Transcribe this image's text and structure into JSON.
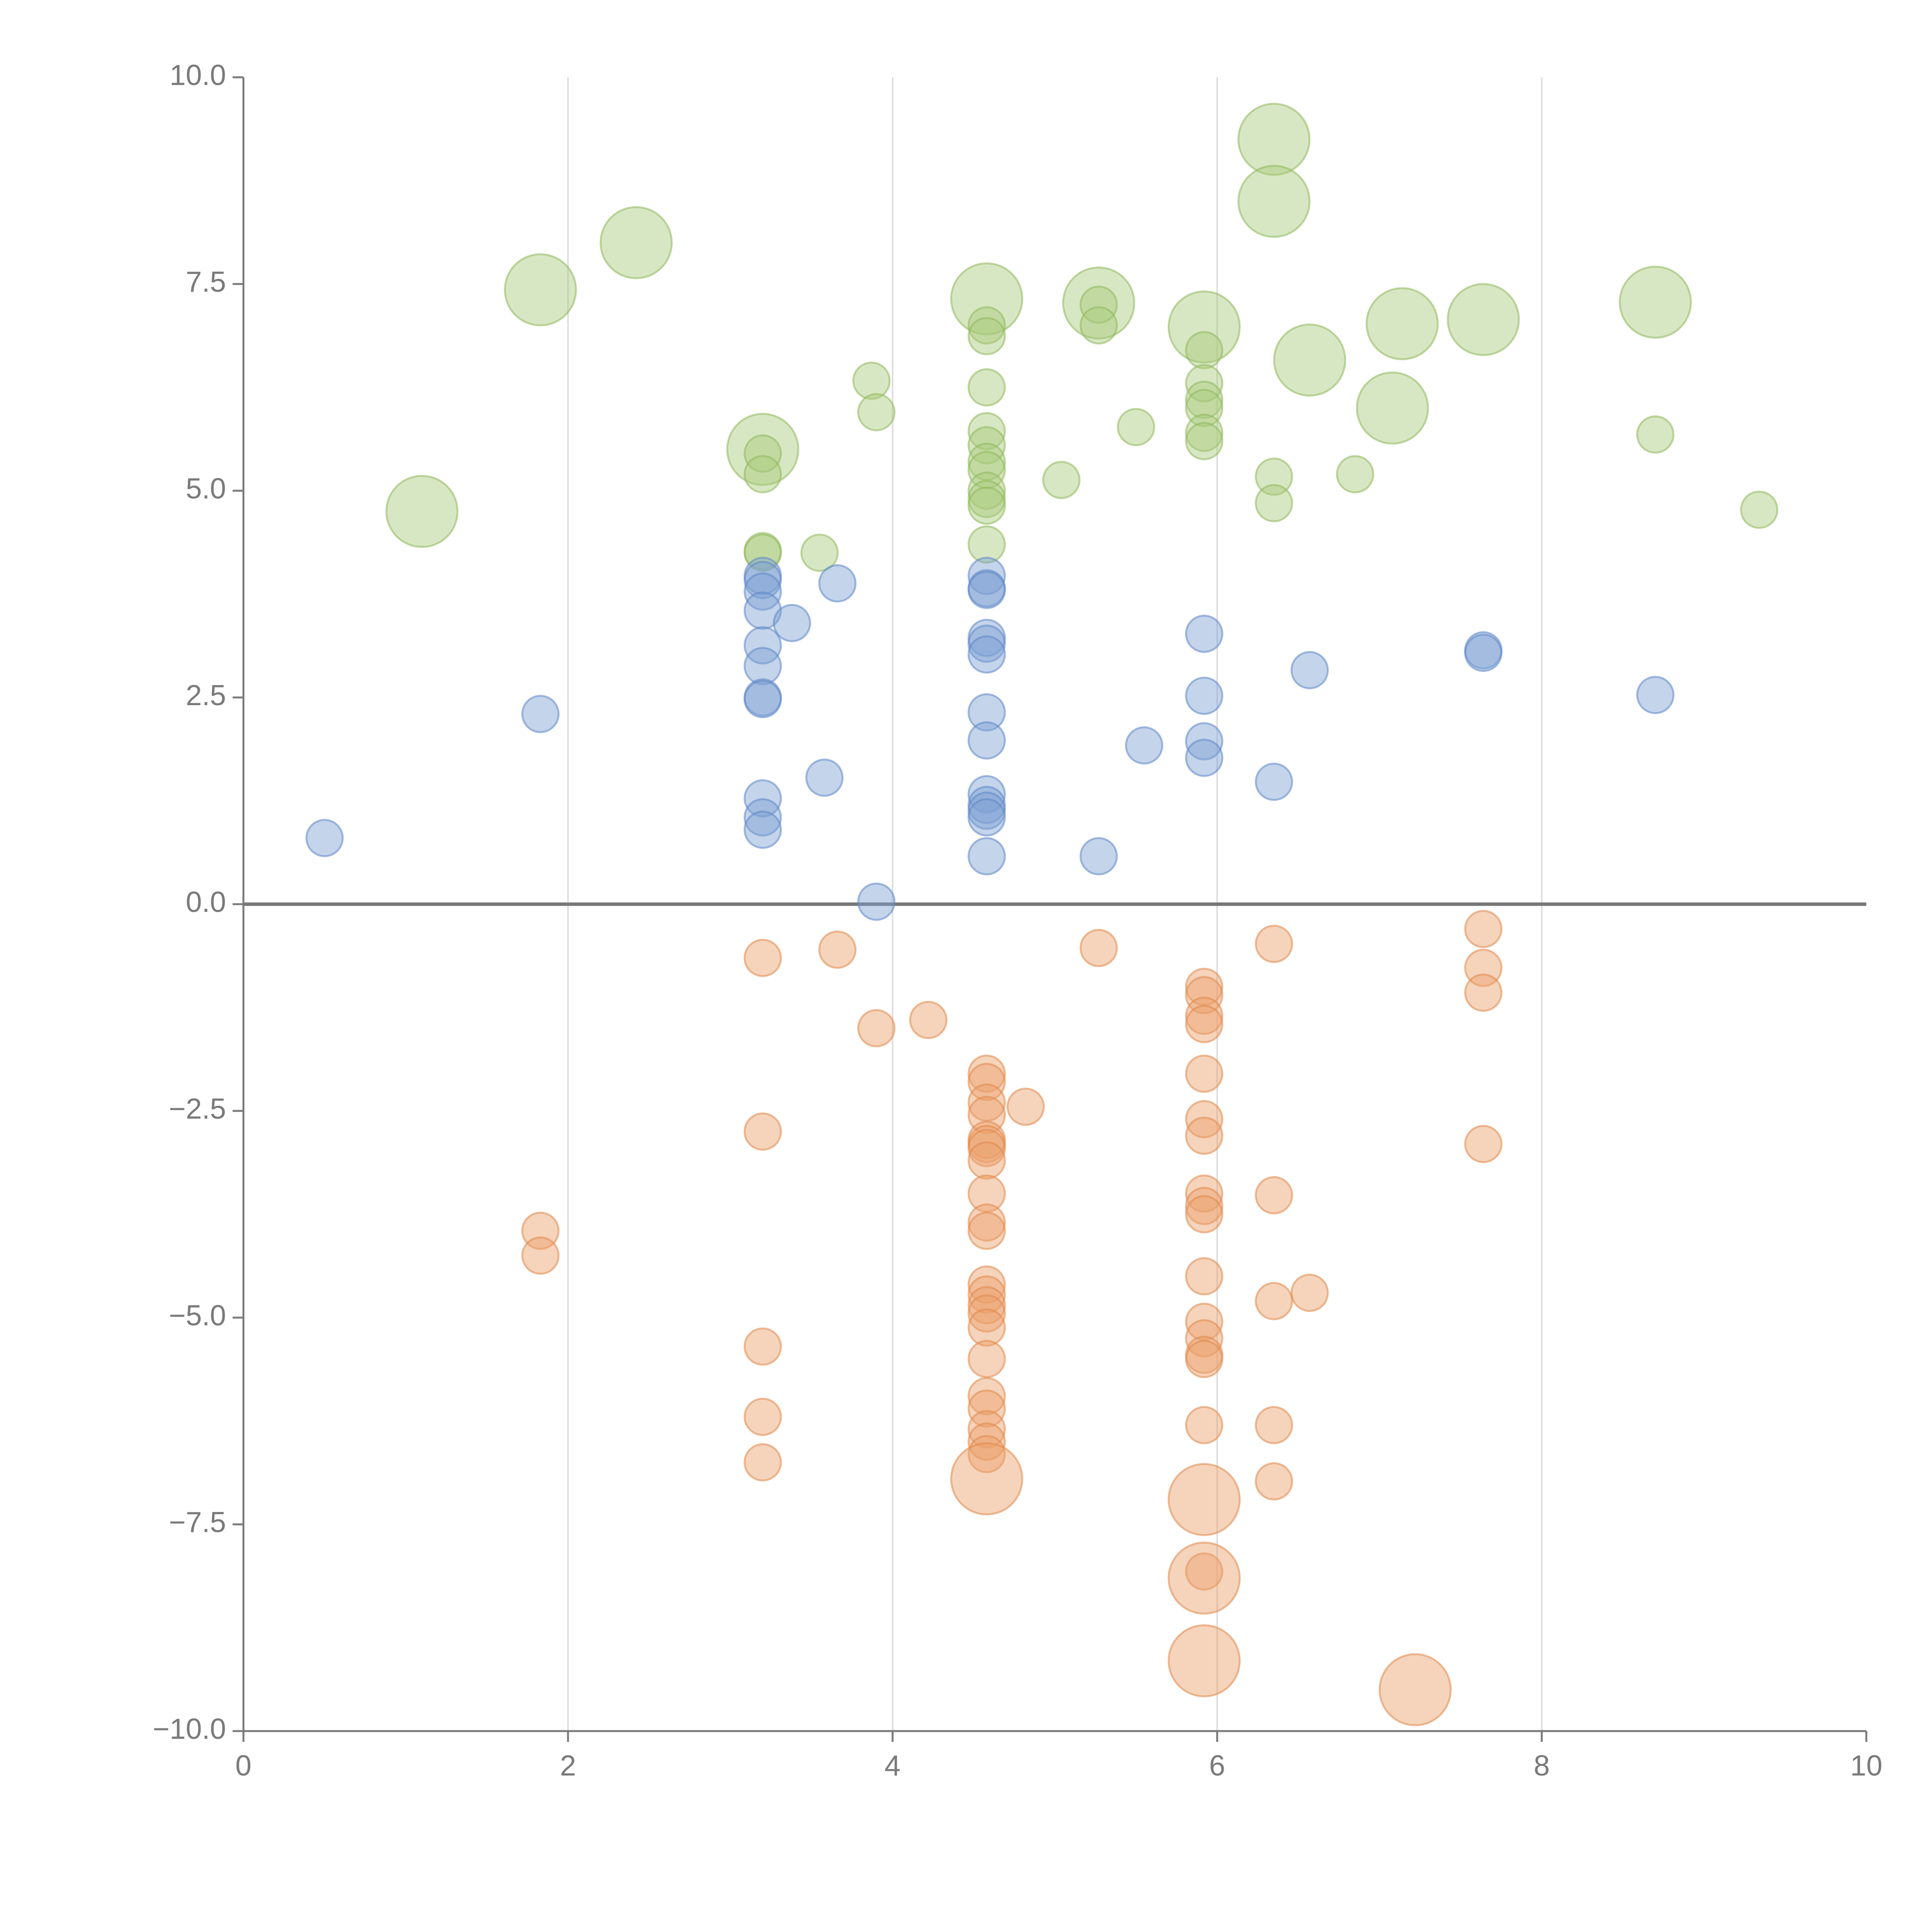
{
  "chart_data": {
    "type": "scatter",
    "title": "",
    "xlabel": "",
    "ylabel": "",
    "xlim": [
      0,
      10
    ],
    "ylim": [
      -10,
      10
    ],
    "x_ticks": [
      "0",
      "2",
      "4",
      "6",
      "8",
      "10"
    ],
    "y_ticks": [
      "10.0",
      "7.5",
      "5.0",
      "2.5",
      "0.0",
      "−2.5",
      "−5.0",
      "−7.5",
      "−10.0"
    ],
    "x_tick_values": [
      0,
      2,
      4,
      6,
      8,
      10
    ],
    "y_tick_values": [
      10,
      7.5,
      5,
      2.5,
      0,
      -2.5,
      -5,
      -7.5,
      -10
    ],
    "vertical_grid_at": [
      2,
      4,
      6,
      8
    ],
    "zero_line": 0,
    "colors": {
      "green_fill": "#a9c97a",
      "green_stroke": "#8fb85c",
      "blue_fill": "#7d9fd3",
      "blue_stroke": "#5f86c6",
      "orange_fill": "#eba06a",
      "orange_stroke": "#e0894a",
      "axis": "#7a7a7a",
      "grid": "#dddddd",
      "zero_line": "#777777"
    },
    "series": [
      {
        "name": "green",
        "fill": "#a9c97a",
        "stroke": "#8fb85c",
        "points": [
          {
            "x": 1.1,
            "y": 4.75,
            "s": 3
          },
          {
            "x": 1.83,
            "y": 7.43,
            "s": 3
          },
          {
            "x": 2.42,
            "y": 8.0,
            "s": 3
          },
          {
            "x": 3.2,
            "y": 5.5,
            "s": 3
          },
          {
            "x": 3.2,
            "y": 5.45,
            "s": 1
          },
          {
            "x": 3.2,
            "y": 5.2,
            "s": 1
          },
          {
            "x": 3.2,
            "y": 4.27,
            "s": 1
          },
          {
            "x": 3.2,
            "y": 4.25,
            "s": 1
          },
          {
            "x": 3.55,
            "y": 4.25,
            "s": 1
          },
          {
            "x": 3.87,
            "y": 6.33,
            "s": 1
          },
          {
            "x": 3.9,
            "y": 5.95,
            "s": 1
          },
          {
            "x": 4.58,
            "y": 7.32,
            "s": 3
          },
          {
            "x": 4.58,
            "y": 7.0,
            "s": 1
          },
          {
            "x": 4.58,
            "y": 6.87,
            "s": 1
          },
          {
            "x": 4.58,
            "y": 6.25,
            "s": 1
          },
          {
            "x": 4.58,
            "y": 5.72,
            "s": 1
          },
          {
            "x": 4.58,
            "y": 5.55,
            "s": 1
          },
          {
            "x": 4.58,
            "y": 5.35,
            "s": 1
          },
          {
            "x": 4.58,
            "y": 5.25,
            "s": 1
          },
          {
            "x": 4.58,
            "y": 5.0,
            "s": 1
          },
          {
            "x": 4.58,
            "y": 4.9,
            "s": 1
          },
          {
            "x": 4.58,
            "y": 4.82,
            "s": 1
          },
          {
            "x": 4.58,
            "y": 4.35,
            "s": 1
          },
          {
            "x": 5.04,
            "y": 5.13,
            "s": 1
          },
          {
            "x": 5.27,
            "y": 7.27,
            "s": 3
          },
          {
            "x": 5.27,
            "y": 7.25,
            "s": 1
          },
          {
            "x": 5.27,
            "y": 7.0,
            "s": 1
          },
          {
            "x": 5.5,
            "y": 5.77,
            "s": 1
          },
          {
            "x": 5.92,
            "y": 6.98,
            "s": 3
          },
          {
            "x": 5.92,
            "y": 6.7,
            "s": 1
          },
          {
            "x": 5.92,
            "y": 6.3,
            "s": 1
          },
          {
            "x": 5.92,
            "y": 6.1,
            "s": 1
          },
          {
            "x": 5.92,
            "y": 6.0,
            "s": 1
          },
          {
            "x": 5.92,
            "y": 5.7,
            "s": 1
          },
          {
            "x": 5.92,
            "y": 5.6,
            "s": 1
          },
          {
            "x": 6.35,
            "y": 9.25,
            "s": 3
          },
          {
            "x": 6.35,
            "y": 8.5,
            "s": 3
          },
          {
            "x": 6.35,
            "y": 5.17,
            "s": 1
          },
          {
            "x": 6.35,
            "y": 4.85,
            "s": 1
          },
          {
            "x": 6.57,
            "y": 6.58,
            "s": 3
          },
          {
            "x": 6.85,
            "y": 5.2,
            "s": 1
          },
          {
            "x": 7.08,
            "y": 6.0,
            "s": 3
          },
          {
            "x": 7.14,
            "y": 7.02,
            "s": 3
          },
          {
            "x": 7.64,
            "y": 7.07,
            "s": 3
          },
          {
            "x": 8.7,
            "y": 7.28,
            "s": 3
          },
          {
            "x": 8.7,
            "y": 5.68,
            "s": 1
          },
          {
            "x": 9.34,
            "y": 4.77,
            "s": 1
          }
        ]
      },
      {
        "name": "blue",
        "fill": "#7d9fd3",
        "stroke": "#5f86c6",
        "points": [
          {
            "x": 0.5,
            "y": 0.8,
            "s": 1
          },
          {
            "x": 1.83,
            "y": 2.3,
            "s": 1
          },
          {
            "x": 3.2,
            "y": 3.97,
            "s": 1
          },
          {
            "x": 3.2,
            "y": 3.92,
            "s": 1
          },
          {
            "x": 3.2,
            "y": 3.78,
            "s": 1
          },
          {
            "x": 3.2,
            "y": 3.55,
            "s": 1
          },
          {
            "x": 3.2,
            "y": 3.13,
            "s": 1
          },
          {
            "x": 3.2,
            "y": 2.88,
            "s": 1
          },
          {
            "x": 3.2,
            "y": 2.5,
            "s": 1
          },
          {
            "x": 3.2,
            "y": 2.48,
            "s": 1
          },
          {
            "x": 3.2,
            "y": 1.28,
            "s": 1
          },
          {
            "x": 3.2,
            "y": 1.05,
            "s": 1
          },
          {
            "x": 3.2,
            "y": 0.9,
            "s": 1
          },
          {
            "x": 3.38,
            "y": 3.4,
            "s": 1
          },
          {
            "x": 3.58,
            "y": 1.53,
            "s": 1
          },
          {
            "x": 3.66,
            "y": 3.88,
            "s": 1
          },
          {
            "x": 3.9,
            "y": 0.03,
            "s": 1
          },
          {
            "x": 4.58,
            "y": 3.97,
            "s": 1
          },
          {
            "x": 4.58,
            "y": 3.82,
            "s": 1
          },
          {
            "x": 4.58,
            "y": 3.8,
            "s": 1
          },
          {
            "x": 4.58,
            "y": 3.22,
            "s": 1
          },
          {
            "x": 4.58,
            "y": 3.15,
            "s": 1
          },
          {
            "x": 4.58,
            "y": 3.02,
            "s": 1
          },
          {
            "x": 4.58,
            "y": 2.32,
            "s": 1
          },
          {
            "x": 4.58,
            "y": 1.98,
            "s": 1
          },
          {
            "x": 4.58,
            "y": 1.33,
            "s": 1
          },
          {
            "x": 4.58,
            "y": 1.2,
            "s": 1
          },
          {
            "x": 4.58,
            "y": 1.13,
            "s": 1
          },
          {
            "x": 4.58,
            "y": 1.05,
            "s": 1
          },
          {
            "x": 4.58,
            "y": 0.58,
            "s": 1
          },
          {
            "x": 5.27,
            "y": 0.58,
            "s": 1
          },
          {
            "x": 5.55,
            "y": 1.92,
            "s": 1
          },
          {
            "x": 5.92,
            "y": 3.27,
            "s": 1
          },
          {
            "x": 5.92,
            "y": 2.52,
            "s": 1
          },
          {
            "x": 5.92,
            "y": 1.97,
            "s": 1
          },
          {
            "x": 5.92,
            "y": 1.77,
            "s": 1
          },
          {
            "x": 6.35,
            "y": 1.48,
            "s": 1
          },
          {
            "x": 6.57,
            "y": 2.83,
            "s": 1
          },
          {
            "x": 7.64,
            "y": 3.07,
            "s": 1
          },
          {
            "x": 7.64,
            "y": 3.04,
            "s": 1
          },
          {
            "x": 8.7,
            "y": 2.53,
            "s": 1
          }
        ]
      },
      {
        "name": "orange",
        "fill": "#eba06a",
        "stroke": "#e0894a",
        "points": [
          {
            "x": 1.83,
            "y": -3.95,
            "s": 1
          },
          {
            "x": 1.83,
            "y": -4.25,
            "s": 1
          },
          {
            "x": 3.2,
            "y": -0.65,
            "s": 1
          },
          {
            "x": 3.2,
            "y": -2.75,
            "s": 1
          },
          {
            "x": 3.2,
            "y": -5.35,
            "s": 1
          },
          {
            "x": 3.2,
            "y": -6.2,
            "s": 1
          },
          {
            "x": 3.2,
            "y": -6.75,
            "s": 1
          },
          {
            "x": 3.66,
            "y": -0.55,
            "s": 1
          },
          {
            "x": 3.9,
            "y": -1.5,
            "s": 1
          },
          {
            "x": 4.22,
            "y": -1.4,
            "s": 1
          },
          {
            "x": 4.58,
            "y": -2.05,
            "s": 1
          },
          {
            "x": 4.58,
            "y": -2.15,
            "s": 1
          },
          {
            "x": 4.58,
            "y": -2.4,
            "s": 1
          },
          {
            "x": 4.58,
            "y": -2.55,
            "s": 1
          },
          {
            "x": 4.58,
            "y": -2.85,
            "s": 1
          },
          {
            "x": 4.58,
            "y": -2.9,
            "s": 1
          },
          {
            "x": 4.58,
            "y": -2.95,
            "s": 1
          },
          {
            "x": 4.58,
            "y": -3.1,
            "s": 1
          },
          {
            "x": 4.58,
            "y": -3.5,
            "s": 1
          },
          {
            "x": 4.58,
            "y": -3.85,
            "s": 1
          },
          {
            "x": 4.58,
            "y": -3.95,
            "s": 1
          },
          {
            "x": 4.58,
            "y": -4.6,
            "s": 1
          },
          {
            "x": 4.58,
            "y": -4.72,
            "s": 1
          },
          {
            "x": 4.58,
            "y": -4.85,
            "s": 1
          },
          {
            "x": 4.58,
            "y": -4.95,
            "s": 1
          },
          {
            "x": 4.58,
            "y": -5.12,
            "s": 1
          },
          {
            "x": 4.58,
            "y": -5.5,
            "s": 1
          },
          {
            "x": 4.58,
            "y": -5.95,
            "s": 1
          },
          {
            "x": 4.58,
            "y": -6.1,
            "s": 1
          },
          {
            "x": 4.58,
            "y": -6.35,
            "s": 1
          },
          {
            "x": 4.58,
            "y": -6.5,
            "s": 1
          },
          {
            "x": 4.58,
            "y": -6.65,
            "s": 1
          },
          {
            "x": 4.58,
            "y": -6.95,
            "s": 3
          },
          {
            "x": 4.82,
            "y": -2.45,
            "s": 1
          },
          {
            "x": 5.27,
            "y": -0.53,
            "s": 1
          },
          {
            "x": 5.92,
            "y": -1.0,
            "s": 1
          },
          {
            "x": 5.92,
            "y": -1.1,
            "s": 1
          },
          {
            "x": 5.92,
            "y": -1.35,
            "s": 1
          },
          {
            "x": 5.92,
            "y": -1.45,
            "s": 1
          },
          {
            "x": 5.92,
            "y": -2.05,
            "s": 1
          },
          {
            "x": 5.92,
            "y": -2.6,
            "s": 1
          },
          {
            "x": 5.92,
            "y": -2.8,
            "s": 1
          },
          {
            "x": 5.92,
            "y": -3.5,
            "s": 1
          },
          {
            "x": 5.92,
            "y": -3.65,
            "s": 1
          },
          {
            "x": 5.92,
            "y": -3.75,
            "s": 1
          },
          {
            "x": 5.92,
            "y": -4.5,
            "s": 1
          },
          {
            "x": 5.92,
            "y": -5.05,
            "s": 1
          },
          {
            "x": 5.92,
            "y": -5.25,
            "s": 1
          },
          {
            "x": 5.92,
            "y": -5.45,
            "s": 1
          },
          {
            "x": 5.92,
            "y": -5.5,
            "s": 1
          },
          {
            "x": 5.92,
            "y": -6.3,
            "s": 1
          },
          {
            "x": 5.92,
            "y": -7.2,
            "s": 3
          },
          {
            "x": 5.92,
            "y": -8.07,
            "s": 1
          },
          {
            "x": 5.92,
            "y": -8.15,
            "s": 3
          },
          {
            "x": 5.92,
            "y": -9.15,
            "s": 3
          },
          {
            "x": 6.35,
            "y": -0.48,
            "s": 1
          },
          {
            "x": 6.35,
            "y": -3.52,
            "s": 1
          },
          {
            "x": 6.35,
            "y": -4.8,
            "s": 1
          },
          {
            "x": 6.35,
            "y": -6.3,
            "s": 1
          },
          {
            "x": 6.35,
            "y": -6.98,
            "s": 1
          },
          {
            "x": 6.57,
            "y": -4.7,
            "s": 1
          },
          {
            "x": 7.22,
            "y": -9.5,
            "s": 3
          },
          {
            "x": 7.64,
            "y": -0.3,
            "s": 1
          },
          {
            "x": 7.64,
            "y": -0.77,
            "s": 1
          },
          {
            "x": 7.64,
            "y": -1.07,
            "s": 1
          },
          {
            "x": 7.64,
            "y": -2.9,
            "s": 1
          }
        ]
      }
    ]
  }
}
